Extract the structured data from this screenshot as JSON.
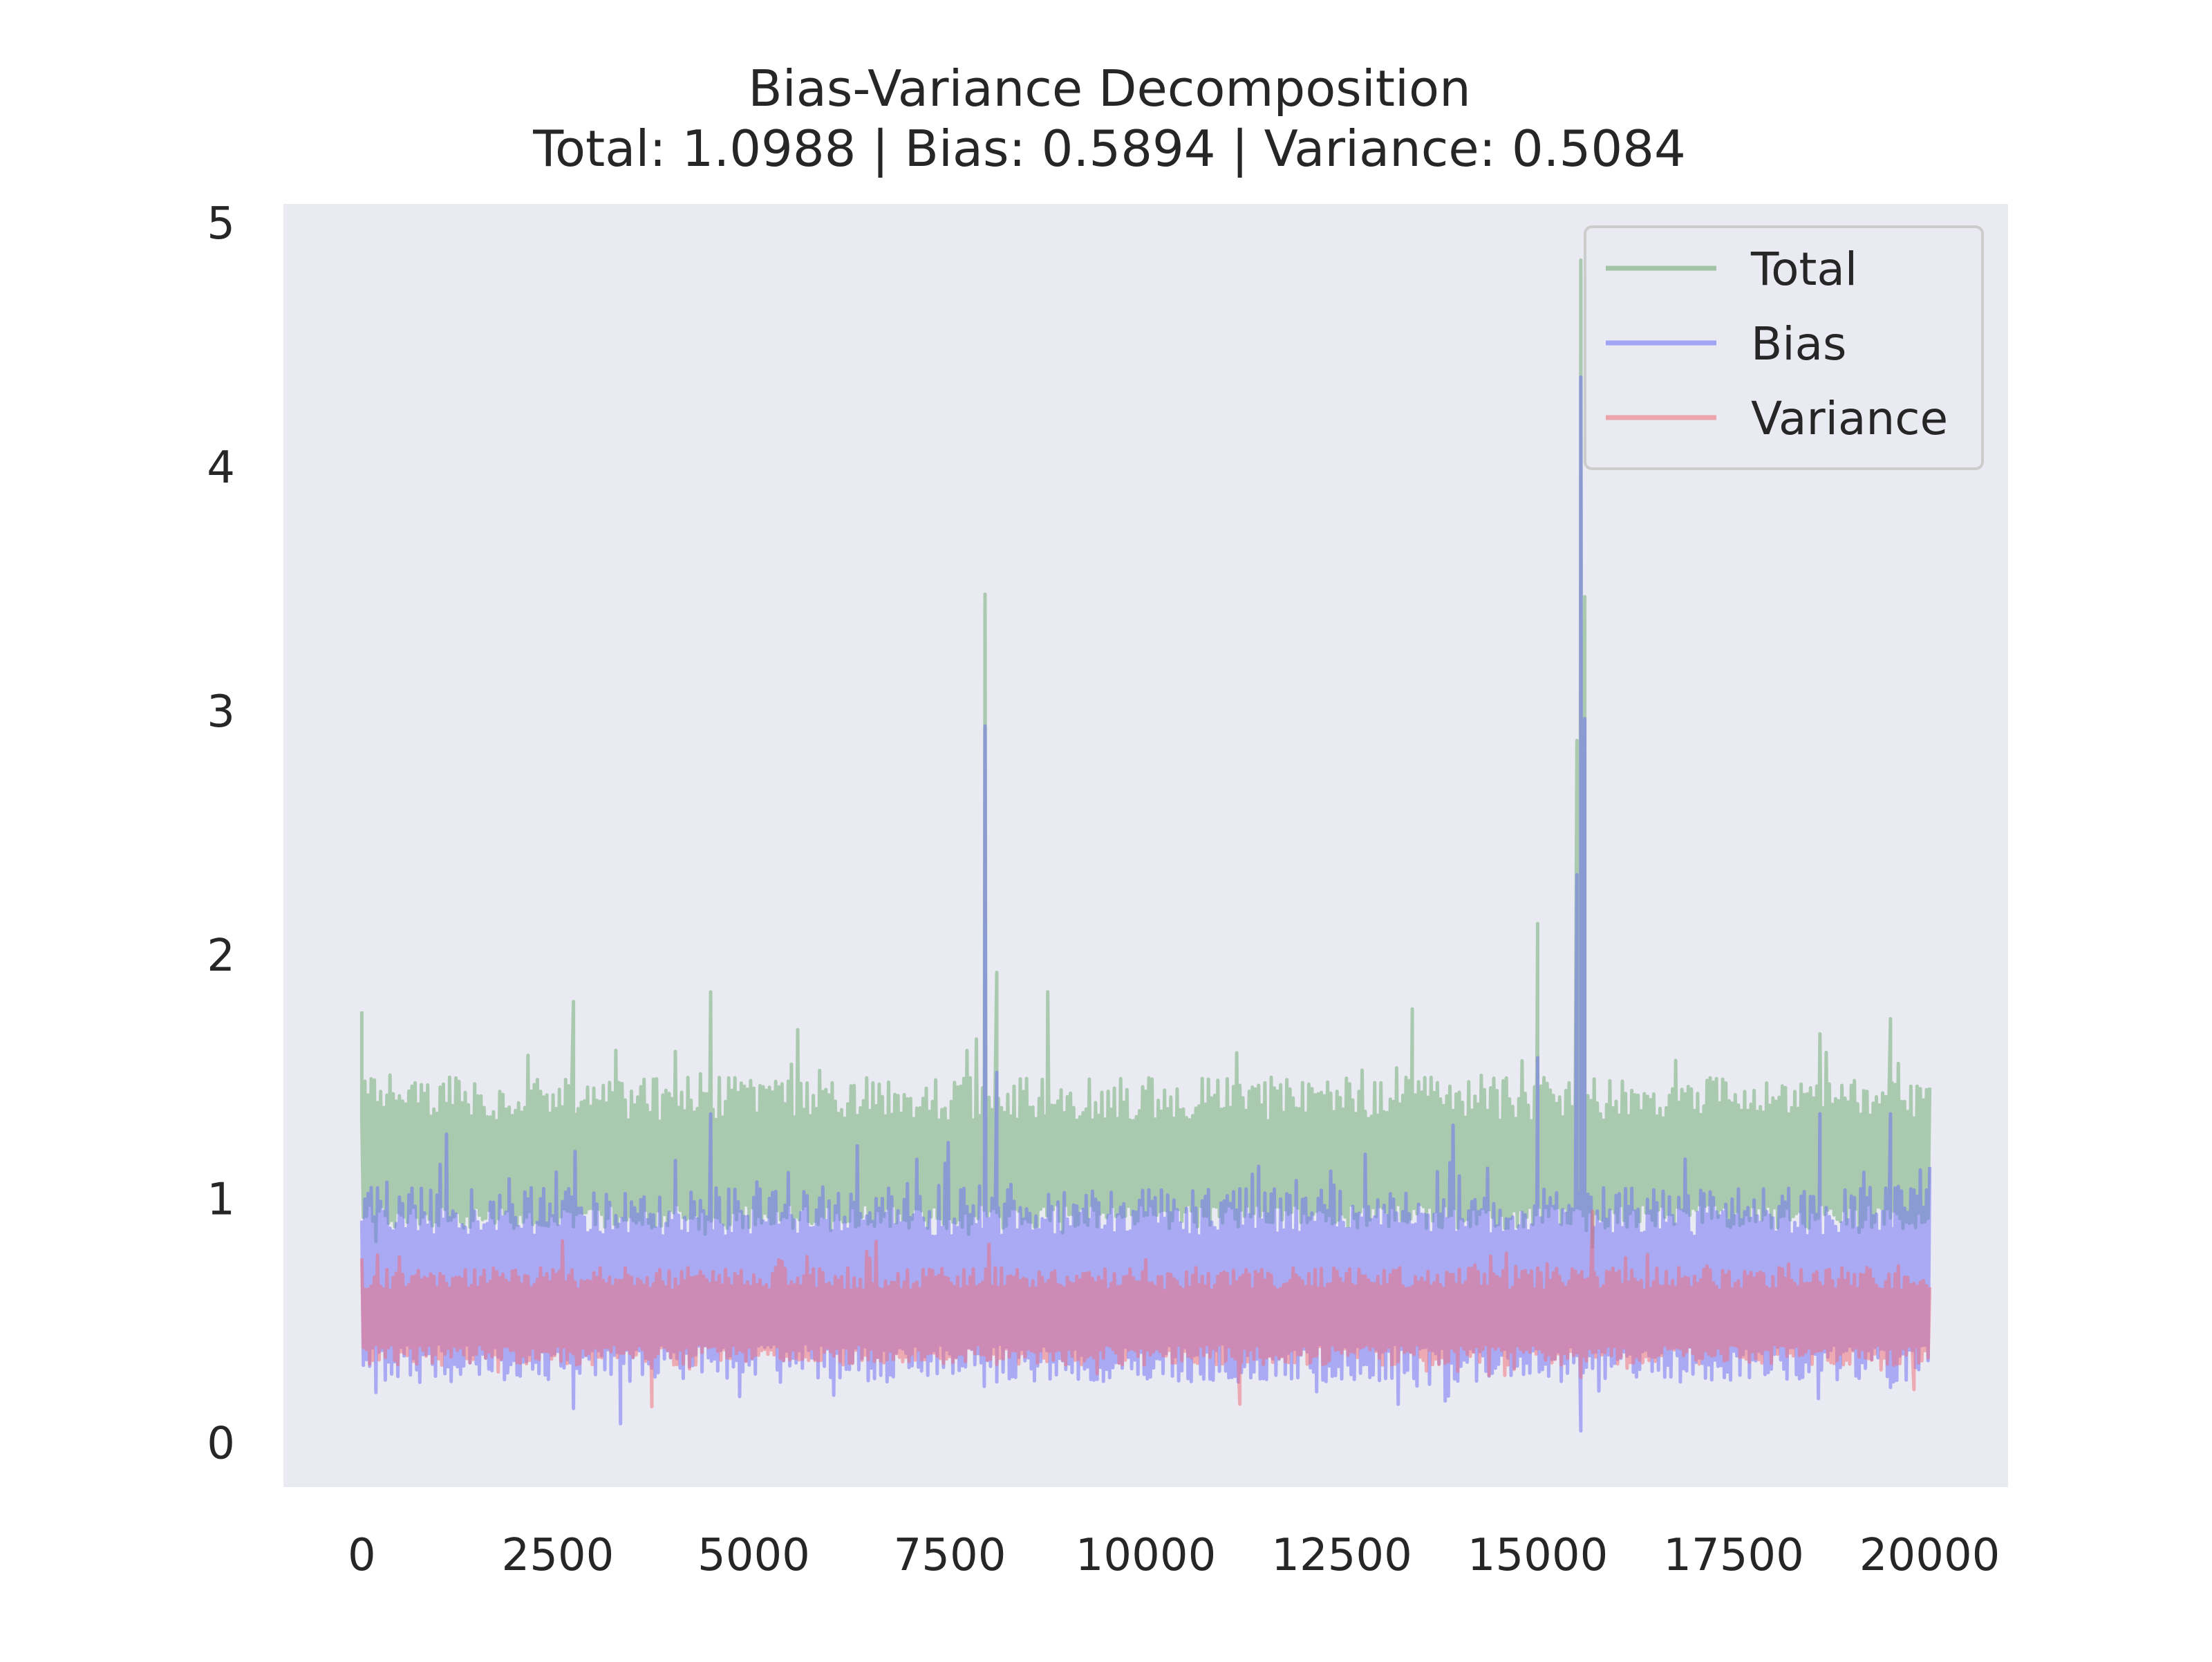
{
  "chart_data": {
    "type": "line",
    "title": "Bias-Variance Decomposition",
    "subtitle": "Total: 1.0988 | Bias: 0.5894 | Variance: 0.5084",
    "xlabel": "",
    "ylabel": "",
    "xlim": [
      -1000,
      21000
    ],
    "ylim": [
      -0.18,
      5.08
    ],
    "x_ticks": [
      0,
      2500,
      5000,
      7500,
      10000,
      12500,
      15000,
      17500,
      20000
    ],
    "y_ticks": [
      0,
      1,
      2,
      3,
      4,
      5
    ],
    "grid": false,
    "legend_position": "top-right",
    "background_color": "#eaeaf2",
    "n_points": 20000,
    "series": [
      {
        "name": "Total",
        "color": "#4c9a4c",
        "opacity": 0.35,
        "band": [
          0.88,
          1.5
        ],
        "mean": 1.1,
        "spikes": [
          [
            7950,
            3.48
          ],
          [
            8100,
            1.93
          ],
          [
            15550,
            4.85
          ],
          [
            15600,
            3.47
          ],
          [
            15500,
            2.88
          ],
          [
            15000,
            2.13
          ],
          [
            4450,
            1.85
          ],
          [
            2700,
            1.81
          ],
          [
            8750,
            1.85
          ],
          [
            13400,
            1.78
          ],
          [
            19500,
            1.74
          ],
          [
            0,
            1.77
          ]
        ]
      },
      {
        "name": "Bias",
        "color": "#6a6af5",
        "opacity": 0.45,
        "band": [
          0.25,
          1.05
        ],
        "mean": 0.6,
        "spikes": [
          [
            7950,
            2.94
          ],
          [
            8100,
            1.52
          ],
          [
            15550,
            4.37
          ],
          [
            15600,
            2.97
          ],
          [
            15500,
            2.33
          ],
          [
            15000,
            1.58
          ],
          [
            4450,
            1.35
          ],
          [
            19500,
            1.35
          ],
          [
            18600,
            1.35
          ],
          [
            15550,
            0.05
          ],
          [
            3300,
            0.08
          ]
        ]
      },
      {
        "name": "Variance",
        "color": "#f06a74",
        "opacity": 0.45,
        "band": [
          0.32,
          0.72
        ],
        "mean": 0.51,
        "spikes": [
          [
            15700,
            0.95
          ],
          [
            3700,
            0.15
          ],
          [
            11200,
            0.16
          ],
          [
            19800,
            0.22
          ],
          [
            15550,
            0.27
          ]
        ]
      }
    ]
  }
}
